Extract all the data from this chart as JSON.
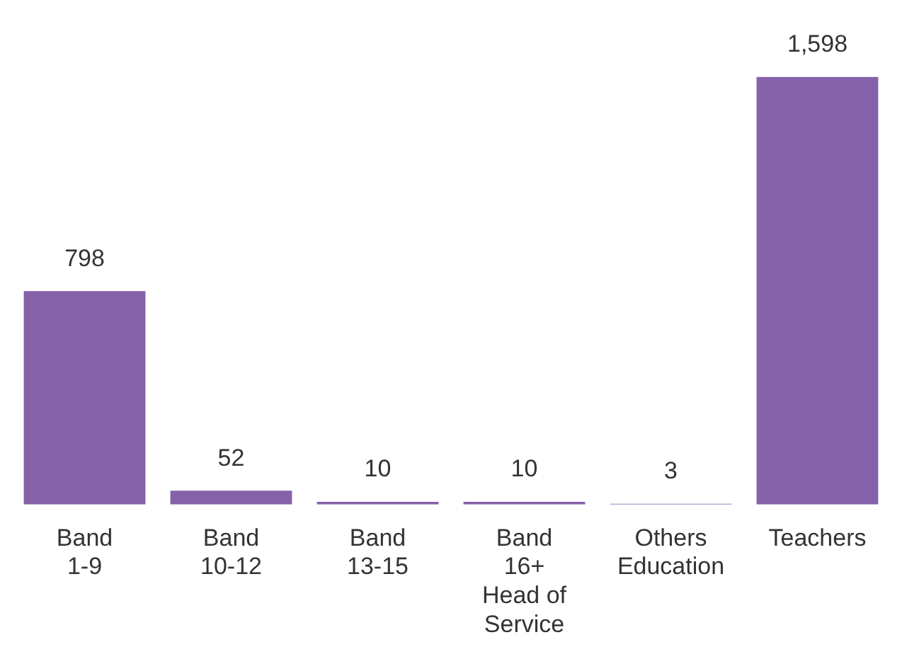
{
  "chart_data": {
    "type": "bar",
    "categories": [
      "Band\n1-9",
      "Band\n10-12",
      "Band\n13-15",
      "Band\n16+\nHead of\nService",
      "Others\nEducation",
      "Teachers"
    ],
    "values": [
      798,
      52,
      10,
      10,
      3,
      1598
    ],
    "color": "#8561a9",
    "value_labels": [
      "798",
      "52",
      "10",
      "10",
      "3",
      "1,598"
    ],
    "grid": false,
    "legend": false
  }
}
